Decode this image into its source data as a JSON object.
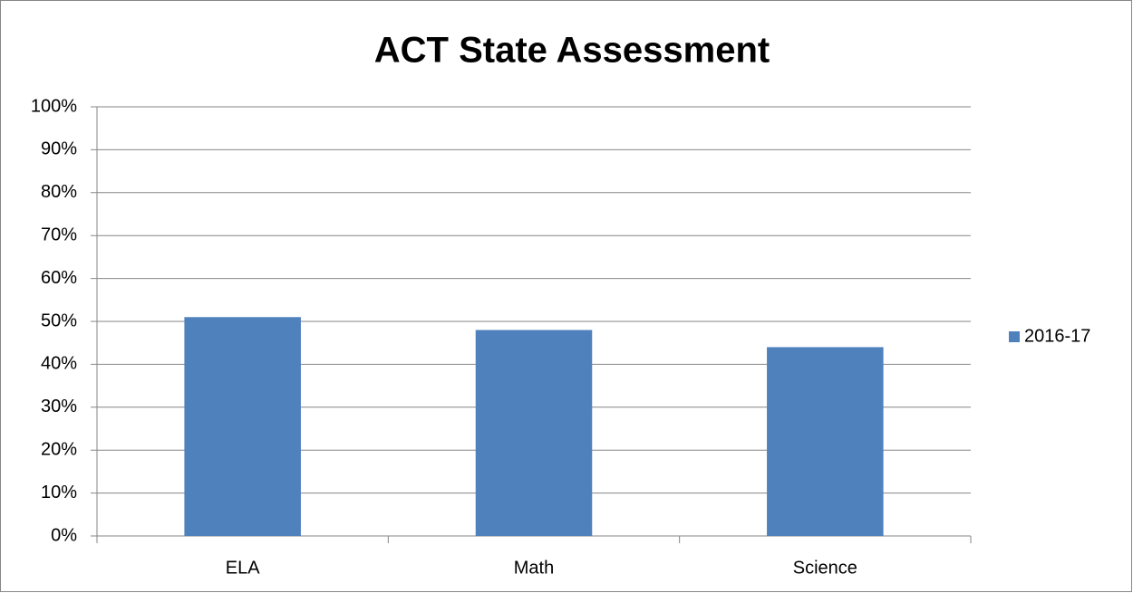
{
  "chart_data": {
    "type": "bar",
    "title": "ACT State Assessment",
    "categories": [
      "ELA",
      "Math",
      "Science"
    ],
    "series": [
      {
        "name": "2016-17",
        "color": "#4f81bd",
        "values": [
          51,
          48,
          44
        ]
      }
    ],
    "ylim": [
      0,
      100
    ],
    "yticks": [
      {
        "value": 0,
        "label": "0%"
      },
      {
        "value": 10,
        "label": "10%"
      },
      {
        "value": 20,
        "label": "20%"
      },
      {
        "value": 30,
        "label": "30%"
      },
      {
        "value": 40,
        "label": "40%"
      },
      {
        "value": 50,
        "label": "50%"
      },
      {
        "value": 60,
        "label": "60%"
      },
      {
        "value": 70,
        "label": "70%"
      },
      {
        "value": 80,
        "label": "80%"
      },
      {
        "value": 90,
        "label": "90%"
      },
      {
        "value": 100,
        "label": "100%"
      }
    ],
    "grid": true,
    "legend": "right"
  }
}
